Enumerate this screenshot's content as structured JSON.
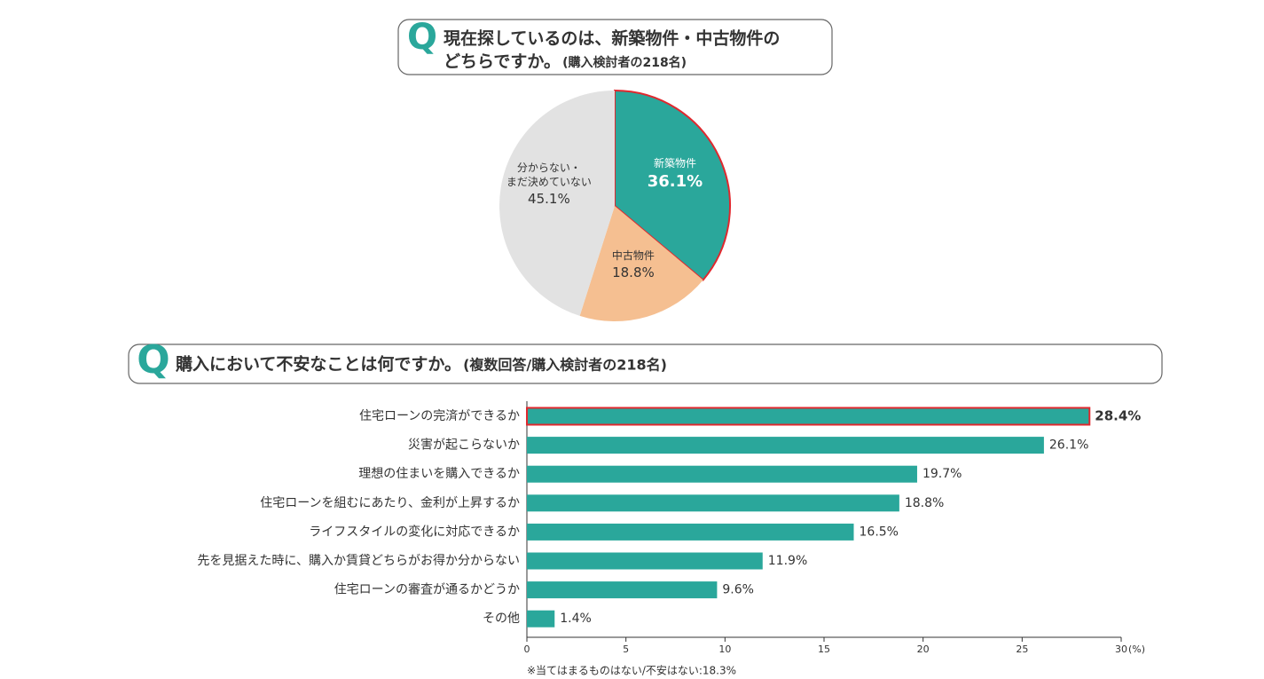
{
  "chart_data": [
    {
      "type": "pie",
      "question_label": "Q",
      "title": [
        "現在探しているのは、新築物件・中古物件の",
        "どちらですか。"
      ],
      "note": "(購入検討者の218名)",
      "categories": [
        "新築物件",
        "中古物件",
        "分からない・\nまだ決めていない"
      ],
      "values": [
        36.1,
        18.8,
        45.1
      ],
      "value_labels": [
        "36.1%",
        "18.8%",
        "45.1%"
      ],
      "colors": [
        "#2aa79b",
        "#f5bf91",
        "#e2e2e2"
      ],
      "highlight": 0,
      "highlight_color": "#e0282e"
    },
    {
      "type": "hbar",
      "question_label": "Q",
      "title": "購入において不安なことは何ですか。",
      "note": "(複数回答/購入検討者の218名)",
      "categories": [
        "住宅ローンの完済ができるか",
        "災害が起こらないか",
        "理想の住まいを購入できるか",
        "住宅ローンを組むにあたり、金利が上昇するか",
        "ライフスタイルの変化に対応できるか",
        "先を見据えた時に、購入か賃貸どちらがお得か分からない",
        "住宅ローンの審査が通るかどうか",
        "その他"
      ],
      "values": [
        28.4,
        26.1,
        19.7,
        18.8,
        16.5,
        11.9,
        9.6,
        1.4
      ],
      "value_labels": [
        "28.4%",
        "26.1%",
        "19.7%",
        "18.8%",
        "16.5%",
        "11.9%",
        "9.6%",
        "1.4%"
      ],
      "color": "#2aa79b",
      "highlight": 0,
      "highlight_color": "#e0282e",
      "xlim": [
        0,
        30
      ],
      "xticks": [
        0,
        5,
        10,
        15,
        20,
        25,
        30
      ],
      "x_unit": "(%)",
      "footnote": "※当てはまるものはない/不安はない:18.3%"
    }
  ]
}
